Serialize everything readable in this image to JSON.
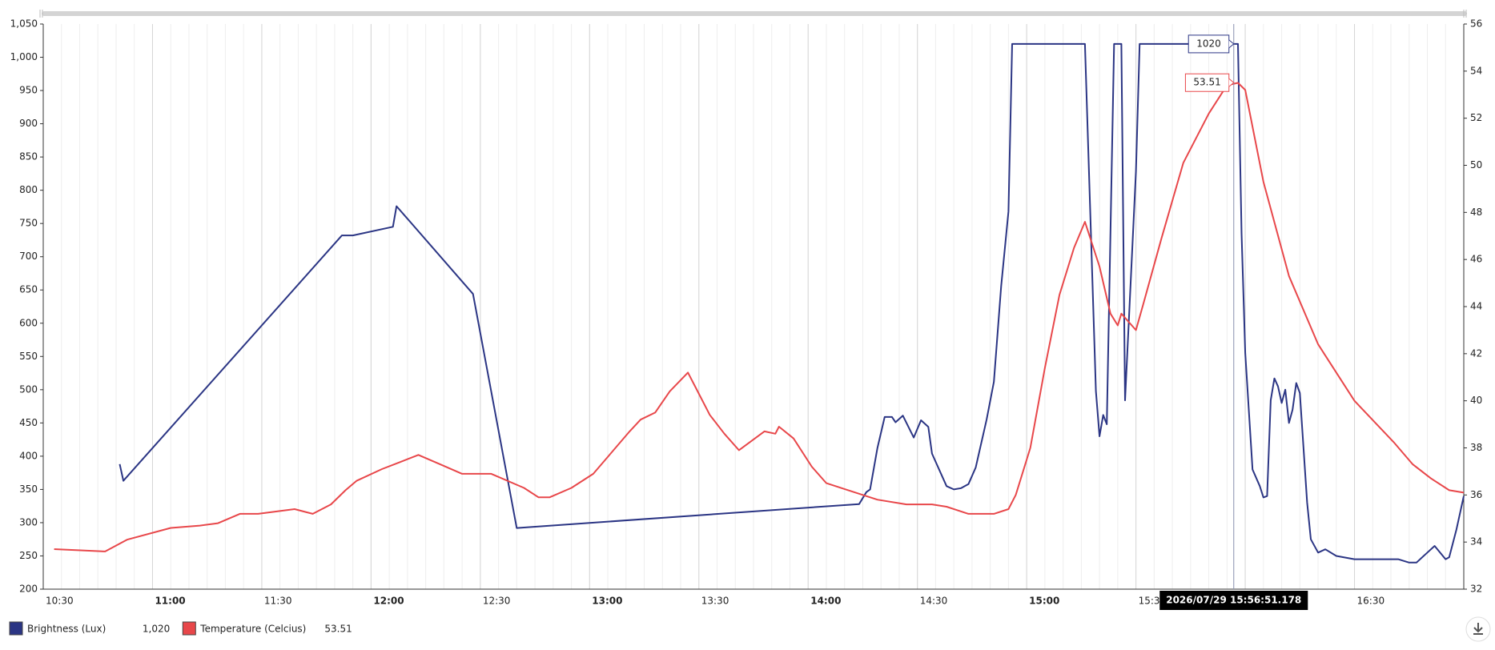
{
  "chart_data": {
    "type": "line",
    "xlim": [
      "10:30",
      "17:00"
    ],
    "xticks": [
      "10:30",
      "11:00",
      "11:30",
      "12:00",
      "12:30",
      "13:00",
      "13:30",
      "14:00",
      "14:30",
      "15:00",
      "15:30",
      "16:00",
      "16:30"
    ],
    "ylim": [
      200,
      1050
    ],
    "yticks": [
      200,
      250,
      300,
      350,
      400,
      450,
      500,
      550,
      600,
      650,
      700,
      750,
      800,
      850,
      900,
      950,
      {
        "value": 1000,
        "label": "1,000"
      },
      {
        "value": 1050,
        "label": "1,050"
      }
    ],
    "y2lim": [
      32,
      56
    ],
    "y2ticks": [
      32,
      34,
      36,
      38,
      40,
      42,
      44,
      46,
      48,
      50,
      52,
      54,
      56
    ],
    "grid": true,
    "legend": "bottom-left",
    "series": [
      {
        "name": "Brightness (Lux)",
        "color": "#2b3584",
        "x": [
          "10:51",
          "10:52",
          "11:52",
          "11:55",
          "12:06",
          "12:07",
          "12:28",
          "12:40",
          "14:14",
          "14:16",
          "14:17",
          "14:19",
          "14:21",
          "14:23",
          "14:24",
          "14:26",
          "14:29",
          "14:31",
          "14:33",
          "14:34",
          "14:38",
          "14:40",
          "14:42",
          "14:44",
          "14:46",
          "14:49",
          "14:51",
          "14:53",
          "14:55",
          "14:56",
          "15:16",
          "15:19",
          "15:20",
          "15:21",
          "15:22",
          "15:24",
          "15:26",
          "15:27",
          "15:30",
          "15:31",
          "15:58",
          "15:59",
          "16:00",
          "16:02",
          "16:04",
          "16:05",
          "16:06",
          "16:07",
          "16:08",
          "16:09",
          "16:10",
          "16:11",
          "16:12",
          "16:13",
          "16:14",
          "16:15",
          "16:17",
          "16:18",
          "16:20",
          "16:22",
          "16:25",
          "16:30",
          "16:35",
          "16:42",
          "16:45",
          "16:47",
          "16:50",
          "16:52",
          "16:55",
          "16:56",
          "16:58",
          "17:00"
        ],
        "values": [
          388,
          363,
          732,
          732,
          745,
          776,
          644,
          292,
          328,
          346,
          350,
          412,
          459,
          459,
          451,
          461,
          428,
          454,
          444,
          404,
          355,
          350,
          352,
          358,
          383,
          455,
          512,
          656,
          768,
          1020,
          1020,
          498,
          430,
          462,
          448,
          1020,
          1020,
          484,
          828,
          1020,
          1020,
          735,
          555,
          380,
          355,
          338,
          340,
          484,
          517,
          505,
          480,
          500,
          450,
          470,
          510,
          495,
          330,
          275,
          255,
          260,
          250,
          245,
          245,
          245,
          240,
          240,
          255,
          265,
          245,
          248,
          290,
          340
        ]
      },
      {
        "name": "Temperature (Celcius)",
        "color": "#e8474a",
        "axis": "y2",
        "x": [
          "10:33",
          "10:47",
          "10:53",
          "11:05",
          "11:13",
          "11:18",
          "11:24",
          "11:29",
          "11:39",
          "11:44",
          "11:49",
          "11:53",
          "11:56",
          "12:03",
          "12:08",
          "12:13",
          "12:19",
          "12:25",
          "12:33",
          "12:42",
          "12:46",
          "12:49",
          "12:55",
          "13:01",
          "13:11",
          "13:14",
          "13:18",
          "13:22",
          "13:27",
          "13:29",
          "13:33",
          "13:37",
          "13:41",
          "13:48",
          "13:51",
          "13:52",
          "13:56",
          "14:01",
          "14:05",
          "14:11",
          "14:19",
          "14:27",
          "14:34",
          "14:38",
          "14:44",
          "14:51",
          "14:55",
          "14:57",
          "15:01",
          "15:05",
          "15:09",
          "15:13",
          "15:16",
          "15:20",
          "15:23",
          "15:25",
          "15:26",
          "15:30",
          "15:32",
          "15:37",
          "15:43",
          "15:50",
          "15:55",
          "15:58",
          "16:00",
          "16:05",
          "16:12",
          "16:20",
          "16:30",
          "16:41",
          "16:46",
          "16:51",
          "16:56",
          "17:00"
        ],
        "values": [
          33.7,
          33.6,
          34.1,
          34.6,
          34.7,
          34.8,
          35.2,
          35.2,
          35.4,
          35.2,
          35.6,
          36.2,
          36.6,
          37.1,
          37.4,
          37.7,
          37.3,
          36.9,
          36.9,
          36.3,
          35.9,
          35.9,
          36.3,
          36.9,
          38.7,
          39.2,
          39.5,
          40.4,
          41.2,
          40.6,
          39.4,
          38.6,
          37.9,
          38.7,
          38.6,
          38.9,
          38.4,
          37.2,
          36.5,
          36.2,
          35.8,
          35.6,
          35.6,
          35.5,
          35.2,
          35.2,
          35.4,
          36.0,
          38.0,
          41.4,
          44.5,
          46.5,
          47.6,
          45.7,
          43.7,
          43.2,
          43.7,
          43.0,
          44.1,
          46.9,
          50.1,
          52.2,
          53.4,
          53.5,
          53.2,
          49.3,
          45.3,
          42.4,
          40.0,
          38.2,
          37.3,
          36.7,
          36.2,
          36.1
        ]
      }
    ],
    "cursor": {
      "label": "2026/07/29 15:56:51.178",
      "values": [
        1020,
        53.51
      ],
      "value_labels": [
        "1020",
        "53.51"
      ],
      "legend_labels": [
        "1,020",
        "53.51"
      ]
    }
  }
}
